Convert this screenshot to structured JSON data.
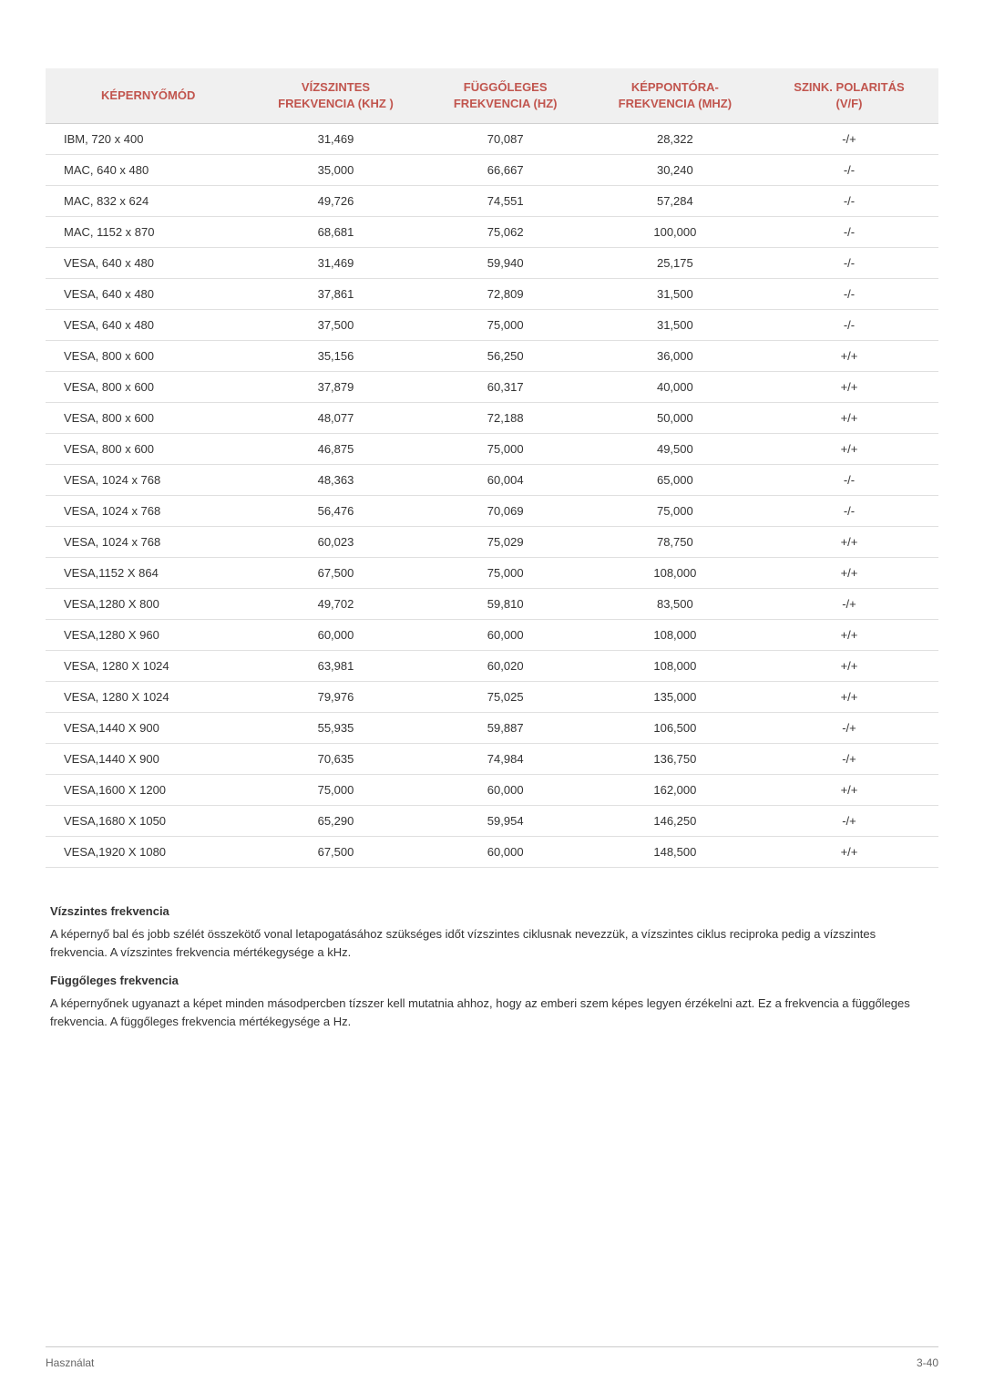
{
  "table": {
    "headers": {
      "col1": "KÉPERNYŐMÓD",
      "col2_line1": "VÍZSZINTES",
      "col2_line2": "FREKVENCIA (KHZ )",
      "col3_line1": "FÜGGŐLEGES",
      "col3_line2": "FREKVENCIA (HZ)",
      "col4_line1": "KÉPPONTÓRA-",
      "col4_line2": "FREKVENCIA (MHZ)",
      "col5_line1": "SZINK. POLARITÁS",
      "col5_line2": "(V/F)"
    },
    "rows": [
      {
        "mode": "IBM, 720 x 400",
        "hfreq": "31,469",
        "vfreq": "70,087",
        "pclock": "28,322",
        "pol": "-/+"
      },
      {
        "mode": "MAC, 640 x 480",
        "hfreq": "35,000",
        "vfreq": "66,667",
        "pclock": "30,240",
        "pol": "-/-"
      },
      {
        "mode": "MAC, 832 x 624",
        "hfreq": "49,726",
        "vfreq": "74,551",
        "pclock": "57,284",
        "pol": "-/-"
      },
      {
        "mode": "MAC, 1152 x 870",
        "hfreq": "68,681",
        "vfreq": "75,062",
        "pclock": "100,000",
        "pol": "-/-"
      },
      {
        "mode": "VESA, 640 x 480",
        "hfreq": "31,469",
        "vfreq": "59,940",
        "pclock": "25,175",
        "pol": "-/-"
      },
      {
        "mode": "VESA, 640 x 480",
        "hfreq": "37,861",
        "vfreq": "72,809",
        "pclock": "31,500",
        "pol": "-/-"
      },
      {
        "mode": "VESA, 640 x 480",
        "hfreq": "37,500",
        "vfreq": "75,000",
        "pclock": "31,500",
        "pol": "-/-"
      },
      {
        "mode": "VESA, 800 x 600",
        "hfreq": "35,156",
        "vfreq": "56,250",
        "pclock": "36,000",
        "pol": "+/+"
      },
      {
        "mode": "VESA, 800 x 600",
        "hfreq": "37,879",
        "vfreq": "60,317",
        "pclock": "40,000",
        "pol": "+/+"
      },
      {
        "mode": "VESA, 800 x 600",
        "hfreq": "48,077",
        "vfreq": "72,188",
        "pclock": "50,000",
        "pol": "+/+"
      },
      {
        "mode": "VESA, 800 x 600",
        "hfreq": "46,875",
        "vfreq": "75,000",
        "pclock": "49,500",
        "pol": "+/+"
      },
      {
        "mode": "VESA, 1024 x 768",
        "hfreq": "48,363",
        "vfreq": "60,004",
        "pclock": "65,000",
        "pol": "-/-"
      },
      {
        "mode": "VESA, 1024 x 768",
        "hfreq": "56,476",
        "vfreq": "70,069",
        "pclock": "75,000",
        "pol": "-/-"
      },
      {
        "mode": "VESA, 1024 x 768",
        "hfreq": "60,023",
        "vfreq": "75,029",
        "pclock": "78,750",
        "pol": "+/+"
      },
      {
        "mode": "VESA,1152 X 864",
        "hfreq": "67,500",
        "vfreq": "75,000",
        "pclock": "108,000",
        "pol": "+/+"
      },
      {
        "mode": "VESA,1280 X 800",
        "hfreq": "49,702",
        "vfreq": "59,810",
        "pclock": "83,500",
        "pol": "-/+"
      },
      {
        "mode": "VESA,1280 X 960",
        "hfreq": "60,000",
        "vfreq": "60,000",
        "pclock": "108,000",
        "pol": "+/+"
      },
      {
        "mode": "VESA, 1280 X 1024",
        "hfreq": "63,981",
        "vfreq": "60,020",
        "pclock": "108,000",
        "pol": "+/+"
      },
      {
        "mode": "VESA, 1280 X 1024",
        "hfreq": "79,976",
        "vfreq": "75,025",
        "pclock": "135,000",
        "pol": "+/+"
      },
      {
        "mode": "VESA,1440 X 900",
        "hfreq": "55,935",
        "vfreq": "59,887",
        "pclock": "106,500",
        "pol": "-/+"
      },
      {
        "mode": "VESA,1440 X 900",
        "hfreq": "70,635",
        "vfreq": "74,984",
        "pclock": "136,750",
        "pol": "-/+"
      },
      {
        "mode": "VESA,1600 X 1200",
        "hfreq": "75,000",
        "vfreq": "60,000",
        "pclock": "162,000",
        "pol": "+/+"
      },
      {
        "mode": "VESA,1680 X 1050",
        "hfreq": "65,290",
        "vfreq": "59,954",
        "pclock": "146,250",
        "pol": "-/+"
      },
      {
        "mode": "VESA,1920 X 1080",
        "hfreq": "67,500",
        "vfreq": "60,000",
        "pclock": "148,500",
        "pol": "+/+"
      }
    ],
    "columnWidths": [
      "23%",
      "19%",
      "19%",
      "19%",
      "20%"
    ],
    "header_bg": "#f0f0f0",
    "header_color": "#c1554e",
    "border_color": "#e0e0e0",
    "text_color": "#333333",
    "fontsize": 13
  },
  "sections": [
    {
      "heading": "Vízszintes frekvencia",
      "body": "A képernyő bal és jobb szélét összekötő vonal letapogatásához szükséges időt vízszintes ciklusnak nevezzük, a vízszintes ciklus reciproka pedig a vízszintes frekvencia. A vízszintes frekvencia mértékegysége a kHz."
    },
    {
      "heading": "Függőleges frekvencia",
      "body": "A képernyőnek ugyanazt a képet minden másodpercben tízszer kell mutatnia ahhoz, hogy az emberi szem képes legyen érzékelni azt. Ez a frekvencia a függőleges frekvencia. A függőleges frekvencia mértékegysége a Hz."
    }
  ],
  "footer": {
    "left": "Használat",
    "right": "3-40"
  }
}
